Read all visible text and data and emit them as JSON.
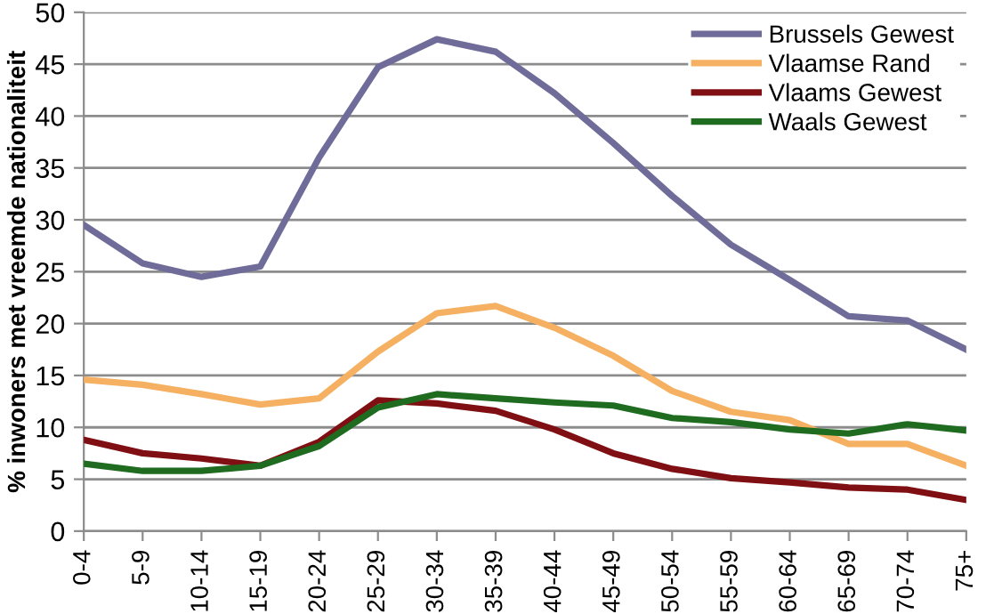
{
  "chart_data": {
    "type": "line",
    "ylabel": "% inwoners met vreemde nationaliteit",
    "categories": [
      "0-4",
      "5-9",
      "10-14",
      "15-19",
      "20-24",
      "25-29",
      "30-34",
      "35-39",
      "40-44",
      "45-49",
      "50-54",
      "55-59",
      "60-64",
      "65-69",
      "70-74",
      "75+"
    ],
    "series": [
      {
        "name": "Brussels Gewest",
        "color": "#6f6c9a",
        "values": [
          29.5,
          25.8,
          24.5,
          25.5,
          36,
          44.7,
          47.4,
          46.2,
          42.2,
          37.4,
          32.3,
          27.6,
          24.2,
          20.7,
          20.3,
          17.5
        ]
      },
      {
        "name": "Vlaamse Rand",
        "color": "#f5b062",
        "values": [
          14.6,
          14.1,
          13.2,
          12.2,
          12.8,
          17.3,
          21,
          21.7,
          19.6,
          16.9,
          13.5,
          11.5,
          10.7,
          8.4,
          8.4,
          6.3
        ]
      },
      {
        "name": "Vlaams Gewest",
        "color": "#7f0f12",
        "values": [
          8.8,
          7.5,
          7,
          6.3,
          8.6,
          12.6,
          12.3,
          11.6,
          9.8,
          7.5,
          6,
          5.1,
          4.7,
          4.2,
          4,
          3
        ]
      },
      {
        "name": "Waals Gewest",
        "color": "#1f6b20",
        "values": [
          6.5,
          5.8,
          5.8,
          6.3,
          8.2,
          11.9,
          13.2,
          12.8,
          12.4,
          12.1,
          10.9,
          10.5,
          9.8,
          9.4,
          10.3,
          9.7
        ]
      }
    ],
    "ylim": [
      0,
      50
    ],
    "yticks": [
      0,
      5,
      10,
      15,
      20,
      25,
      30,
      35,
      40,
      45,
      50
    ],
    "grid": "y",
    "legend": "top right",
    "marker": "none",
    "line_style": "solid"
  }
}
